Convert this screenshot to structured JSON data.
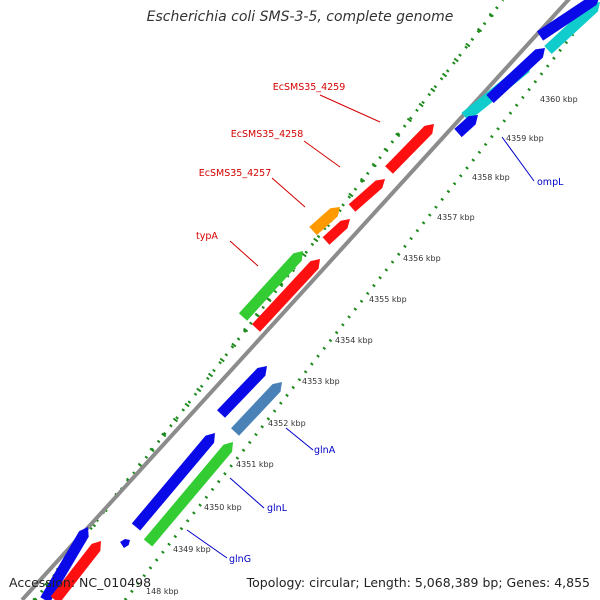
{
  "title": "Escherichia coli SMS-3-5, complete genome",
  "accession": "Accession: NC_010498",
  "summary": "Topology: circular; Length: 5,068,389 bp; Genes: 4,855",
  "colors": {
    "backbone": "#8c8c8c",
    "dotted_line": "#1d8a1d",
    "forward_label": "#d40000",
    "reverse_label": "#0000c8",
    "red": "#ff1010",
    "orange": "#ff9900",
    "green": "#33cc33",
    "blue": "#0a0ae8",
    "cyan": "#11cccc",
    "steelblue": "#4a82b8"
  },
  "ticks": [
    {
      "label": "148 kbp"
    },
    {
      "label": "4349 kbp"
    },
    {
      "label": "4350 kbp"
    },
    {
      "label": "4351 kbp"
    },
    {
      "label": "4352 kbp"
    },
    {
      "label": "4353 kbp"
    },
    {
      "label": "4354 kbp"
    },
    {
      "label": "4355 kbp"
    },
    {
      "label": "4356 kbp"
    },
    {
      "label": "4357 kbp"
    },
    {
      "label": "4358 kbp"
    },
    {
      "label": "4359 kbp"
    },
    {
      "label": "4360 kbp"
    }
  ],
  "gene_labels": [
    {
      "text": "EcSMS35_4259",
      "strand": "forward"
    },
    {
      "text": "EcSMS35_4258",
      "strand": "forward"
    },
    {
      "text": "EcSMS35_4257",
      "strand": "forward"
    },
    {
      "text": "typA",
      "strand": "forward"
    },
    {
      "text": "ompL",
      "strand": "reverse"
    },
    {
      "text": "glnA",
      "strand": "reverse"
    },
    {
      "text": "glnL",
      "strand": "reverse"
    },
    {
      "text": "glnG",
      "strand": "reverse"
    }
  ],
  "features": [
    {
      "name": "feature-cyan-1",
      "color": "cyan"
    },
    {
      "name": "feature-cyan-2",
      "color": "cyan"
    },
    {
      "name": "feature-blue-1",
      "color": "blue"
    },
    {
      "name": "feature-blue-2",
      "color": "blue"
    },
    {
      "name": "feature-blue-3",
      "color": "blue"
    },
    {
      "name": "feature-blue-4",
      "color": "blue"
    },
    {
      "name": "feature-red-1",
      "color": "red"
    },
    {
      "name": "feature-red-2",
      "color": "red"
    },
    {
      "name": "feature-red-3",
      "color": "red"
    },
    {
      "name": "feature-orange-1",
      "color": "orange"
    },
    {
      "name": "feature-green-typA",
      "color": "green"
    },
    {
      "name": "feature-red-4",
      "color": "red"
    },
    {
      "name": "feature-blue-5",
      "color": "blue"
    },
    {
      "name": "feature-blue-6",
      "color": "blue"
    },
    {
      "name": "feature-steelblue-glnA",
      "color": "steelblue"
    },
    {
      "name": "feature-blue-7",
      "color": "blue"
    },
    {
      "name": "feature-green-glnL",
      "color": "green"
    },
    {
      "name": "feature-blue-8",
      "color": "blue"
    },
    {
      "name": "feature-blue-9",
      "color": "blue"
    },
    {
      "name": "feature-red-5",
      "color": "red"
    }
  ]
}
